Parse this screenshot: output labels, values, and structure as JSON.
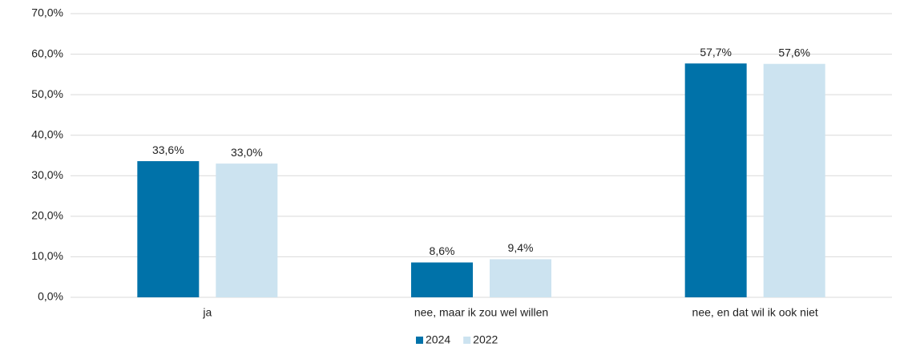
{
  "chart_data": {
    "type": "bar",
    "categories": [
      "ja",
      "nee, maar ik zou wel willen",
      "nee, en dat wil ik ook niet"
    ],
    "series": [
      {
        "name": "2024",
        "color": "#0072a9",
        "values": [
          33.6,
          8.6,
          57.7
        ],
        "value_labels": [
          "33,6%",
          "8,6%",
          "57,7%"
        ]
      },
      {
        "name": "2022",
        "color": "#cce3f0",
        "values": [
          33.0,
          9.4,
          57.6
        ],
        "value_labels": [
          "33,0%",
          "9,4%",
          "57,6%"
        ]
      }
    ],
    "ylim": [
      0,
      70
    ],
    "yticks": [
      {
        "value": 0,
        "label": "0,0%"
      },
      {
        "value": 10,
        "label": "10,0%"
      },
      {
        "value": 20,
        "label": "20,0%"
      },
      {
        "value": 30,
        "label": "30,0%"
      },
      {
        "value": 40,
        "label": "40,0%"
      },
      {
        "value": 50,
        "label": "50,0%"
      },
      {
        "value": 60,
        "label": "60,0%"
      },
      {
        "value": 70,
        "label": "70,0%"
      }
    ],
    "grid": true,
    "legend": "bottom"
  }
}
